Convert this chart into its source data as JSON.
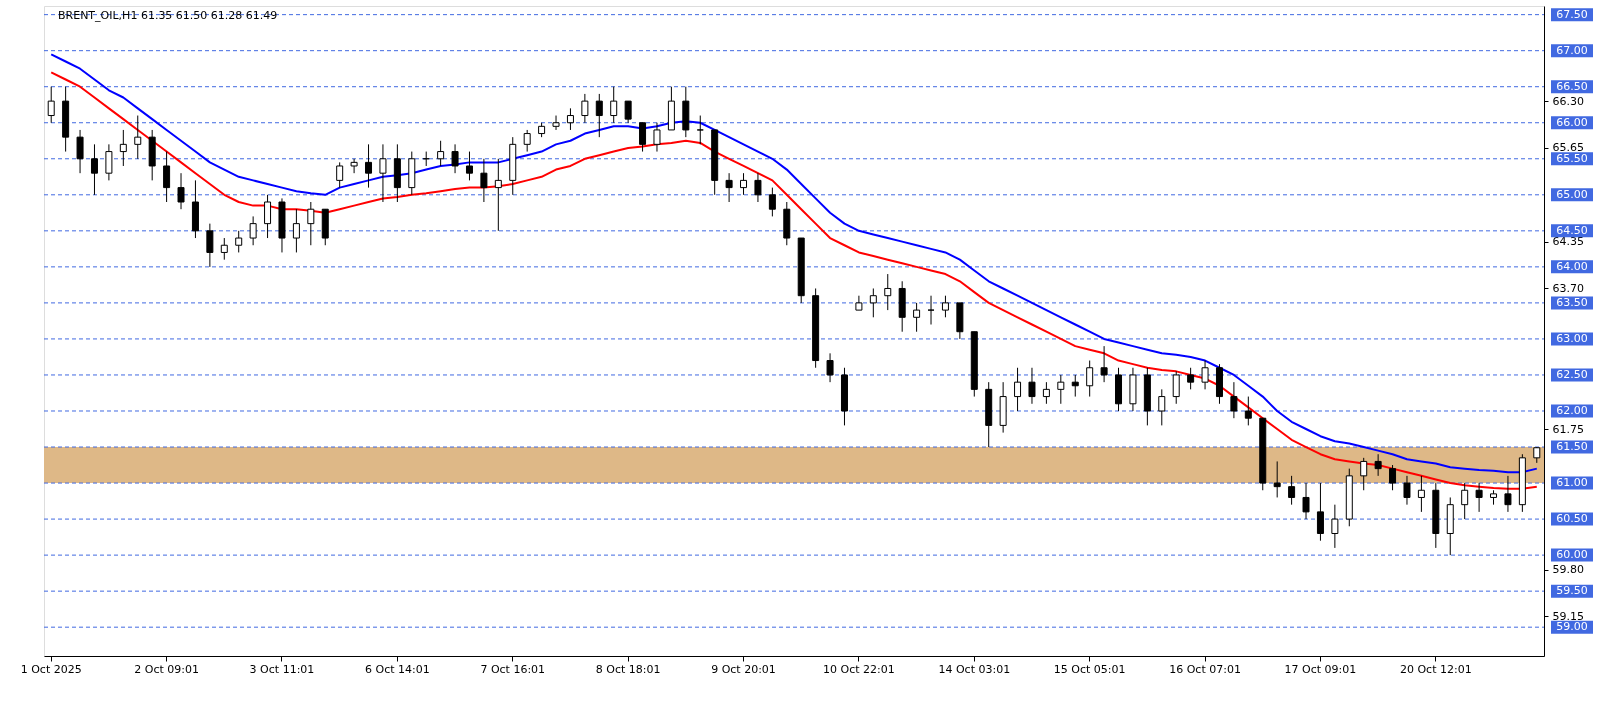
{
  "chart_data": {
    "type": "candlestick",
    "title": "BRENT_OIL,H1  61.35 61.50 61.28 61.49",
    "categories": [
      "1 Oct 2025",
      null,
      null,
      null,
      null,
      null,
      null,
      null,
      "2 Oct 09:01",
      null,
      null,
      null,
      null,
      null,
      null,
      null,
      "3 Oct 11:01",
      null,
      null,
      null,
      null,
      null,
      null,
      null,
      "6 Oct 14:01",
      null,
      null,
      null,
      null,
      null,
      null,
      null,
      "7 Oct 16:01",
      null,
      null,
      null,
      null,
      null,
      null,
      null,
      "8 Oct 18:01",
      null,
      null,
      null,
      null,
      null,
      null,
      null,
      "9 Oct 20:01",
      null,
      null,
      null,
      null,
      null,
      null,
      null,
      "10 Oct 22:01",
      null,
      null,
      null,
      null,
      null,
      null,
      null,
      "14 Oct 03:01",
      null,
      null,
      null,
      null,
      null,
      null,
      null,
      "15 Oct 05:01",
      null,
      null,
      null,
      null,
      null,
      null,
      null,
      "16 Oct 07:01",
      null,
      null,
      null,
      null,
      null,
      null,
      null,
      "17 Oct 09:01",
      null,
      null,
      null,
      null,
      null,
      null,
      null,
      "20 Oct 12:01",
      null,
      null,
      null,
      null,
      null,
      null,
      null
    ],
    "ohlc": [
      [
        66.1,
        66.5,
        66.0,
        66.3
      ],
      [
        66.3,
        66.5,
        65.6,
        65.8
      ],
      [
        65.8,
        65.9,
        65.3,
        65.5
      ],
      [
        65.5,
        65.7,
        65.0,
        65.3
      ],
      [
        65.3,
        65.7,
        65.2,
        65.6
      ],
      [
        65.6,
        65.9,
        65.4,
        65.7
      ],
      [
        65.7,
        66.1,
        65.5,
        65.8
      ],
      [
        65.8,
        65.9,
        65.2,
        65.4
      ],
      [
        65.4,
        65.6,
        64.9,
        65.1
      ],
      [
        65.1,
        65.3,
        64.8,
        64.9
      ],
      [
        64.9,
        65.2,
        64.4,
        64.5
      ],
      [
        64.5,
        64.6,
        64.0,
        64.2
      ],
      [
        64.2,
        64.4,
        64.1,
        64.3
      ],
      [
        64.3,
        64.5,
        64.2,
        64.4
      ],
      [
        64.4,
        64.7,
        64.3,
        64.6
      ],
      [
        64.6,
        65.0,
        64.4,
        64.9
      ],
      [
        64.9,
        64.95,
        64.2,
        64.4
      ],
      [
        64.4,
        64.8,
        64.2,
        64.6
      ],
      [
        64.6,
        64.9,
        64.3,
        64.8
      ],
      [
        64.8,
        64.8,
        64.3,
        64.4
      ],
      [
        65.2,
        65.45,
        65.1,
        65.4
      ],
      [
        65.4,
        65.5,
        65.3,
        65.45
      ],
      [
        65.45,
        65.7,
        65.1,
        65.3
      ],
      [
        65.3,
        65.7,
        64.9,
        65.5
      ],
      [
        65.5,
        65.7,
        64.9,
        65.1
      ],
      [
        65.1,
        65.6,
        65.0,
        65.5
      ],
      [
        65.5,
        65.6,
        65.4,
        65.5
      ],
      [
        65.5,
        65.75,
        65.4,
        65.6
      ],
      [
        65.6,
        65.7,
        65.3,
        65.4
      ],
      [
        65.4,
        65.6,
        65.2,
        65.3
      ],
      [
        65.3,
        65.5,
        64.9,
        65.1
      ],
      [
        65.1,
        65.5,
        64.5,
        65.2
      ],
      [
        65.2,
        65.8,
        65.0,
        65.7
      ],
      [
        65.7,
        65.9,
        65.6,
        65.85
      ],
      [
        65.85,
        66.0,
        65.8,
        65.95
      ],
      [
        65.95,
        66.1,
        65.9,
        66.0
      ],
      [
        66.0,
        66.2,
        65.9,
        66.1
      ],
      [
        66.1,
        66.4,
        66.0,
        66.3
      ],
      [
        66.3,
        66.4,
        65.8,
        66.1
      ],
      [
        66.1,
        66.5,
        66.0,
        66.3
      ],
      [
        66.3,
        66.3,
        66.0,
        66.05
      ],
      [
        66.0,
        66.0,
        65.6,
        65.7
      ],
      [
        65.7,
        66.0,
        65.6,
        65.9
      ],
      [
        65.9,
        66.5,
        65.9,
        66.3
      ],
      [
        66.3,
        66.5,
        65.8,
        65.9
      ],
      [
        65.9,
        66.1,
        65.7,
        65.9
      ],
      [
        65.9,
        65.9,
        65.0,
        65.2
      ],
      [
        65.2,
        65.3,
        64.9,
        65.1
      ],
      [
        65.1,
        65.3,
        65.0,
        65.2
      ],
      [
        65.2,
        65.3,
        64.9,
        65.0
      ],
      [
        65.0,
        65.1,
        64.7,
        64.8
      ],
      [
        64.8,
        64.9,
        64.3,
        64.4
      ],
      [
        64.4,
        64.4,
        63.5,
        63.6
      ],
      [
        63.6,
        63.7,
        62.6,
        62.7
      ],
      [
        62.7,
        62.8,
        62.4,
        62.5
      ],
      [
        62.5,
        62.6,
        61.8,
        62.0
      ],
      [
        63.4,
        63.6,
        63.4,
        63.5
      ],
      [
        63.5,
        63.7,
        63.3,
        63.6
      ],
      [
        63.6,
        63.9,
        63.4,
        63.7
      ],
      [
        63.7,
        63.8,
        63.1,
        63.3
      ],
      [
        63.3,
        63.5,
        63.1,
        63.4
      ],
      [
        63.4,
        63.6,
        63.2,
        63.4
      ],
      [
        63.4,
        63.6,
        63.3,
        63.5
      ],
      [
        63.5,
        63.5,
        63.0,
        63.1
      ],
      [
        63.1,
        63.1,
        62.2,
        62.3
      ],
      [
        62.3,
        62.4,
        61.5,
        61.8
      ],
      [
        61.8,
        62.4,
        61.7,
        62.2
      ],
      [
        62.2,
        62.6,
        62.0,
        62.4
      ],
      [
        62.4,
        62.6,
        62.1,
        62.2
      ],
      [
        62.2,
        62.4,
        62.1,
        62.3
      ],
      [
        62.3,
        62.5,
        62.1,
        62.4
      ],
      [
        62.4,
        62.5,
        62.2,
        62.35
      ],
      [
        62.35,
        62.7,
        62.2,
        62.6
      ],
      [
        62.6,
        62.9,
        62.4,
        62.5
      ],
      [
        62.5,
        62.6,
        62.0,
        62.1
      ],
      [
        62.1,
        62.6,
        62.0,
        62.5
      ],
      [
        62.5,
        62.6,
        61.8,
        62.0
      ],
      [
        62.0,
        62.3,
        61.8,
        62.2
      ],
      [
        62.2,
        62.55,
        62.1,
        62.5
      ],
      [
        62.5,
        62.6,
        62.3,
        62.4
      ],
      [
        62.4,
        62.7,
        62.3,
        62.6
      ],
      [
        62.6,
        62.65,
        62.1,
        62.2
      ],
      [
        62.2,
        62.4,
        61.9,
        62.0
      ],
      [
        62.0,
        62.2,
        61.8,
        61.9
      ],
      [
        61.9,
        61.9,
        60.9,
        61.0
      ],
      [
        61.0,
        61.3,
        60.8,
        60.95
      ],
      [
        60.95,
        61.1,
        60.7,
        60.8
      ],
      [
        60.8,
        61.0,
        60.5,
        60.6
      ],
      [
        60.6,
        61.0,
        60.2,
        60.3
      ],
      [
        60.3,
        60.7,
        60.1,
        60.5
      ],
      [
        60.5,
        61.2,
        60.4,
        61.1
      ],
      [
        61.1,
        61.35,
        60.9,
        61.3
      ],
      [
        61.3,
        61.4,
        61.1,
        61.2
      ],
      [
        61.2,
        61.25,
        60.9,
        61.0
      ],
      [
        61.0,
        61.1,
        60.7,
        60.8
      ],
      [
        60.8,
        61.1,
        60.6,
        60.9
      ],
      [
        60.9,
        61.0,
        60.1,
        60.3
      ],
      [
        60.3,
        60.8,
        60.0,
        60.7
      ],
      [
        60.7,
        61.0,
        60.5,
        60.9
      ],
      [
        60.9,
        61.0,
        60.6,
        60.8
      ],
      [
        60.8,
        60.9,
        60.7,
        60.85
      ],
      [
        60.85,
        61.1,
        60.6,
        60.7
      ],
      [
        60.7,
        61.4,
        60.6,
        61.35
      ],
      [
        61.35,
        61.5,
        61.28,
        61.49
      ]
    ],
    "series": [
      {
        "type": "line",
        "color": "#0000ff",
        "values": [
          66.95,
          66.85,
          66.75,
          66.6,
          66.45,
          66.35,
          66.2,
          66.05,
          65.9,
          65.75,
          65.6,
          65.45,
          65.35,
          65.25,
          65.2,
          65.15,
          65.1,
          65.05,
          65.02,
          65.0,
          65.1,
          65.15,
          65.2,
          65.25,
          65.27,
          65.3,
          65.35,
          65.4,
          65.42,
          65.45,
          65.45,
          65.45,
          65.5,
          65.55,
          65.6,
          65.7,
          65.75,
          65.85,
          65.9,
          65.95,
          65.95,
          65.92,
          65.95,
          66.0,
          66.02,
          66.0,
          65.9,
          65.8,
          65.7,
          65.6,
          65.5,
          65.35,
          65.15,
          64.95,
          64.75,
          64.6,
          64.5,
          64.45,
          64.4,
          64.35,
          64.3,
          64.25,
          64.2,
          64.1,
          63.95,
          63.8,
          63.7,
          63.6,
          63.5,
          63.4,
          63.3,
          63.2,
          63.1,
          63.0,
          62.95,
          62.9,
          62.85,
          62.8,
          62.78,
          62.75,
          62.7,
          62.6,
          62.5,
          62.35,
          62.2,
          62.0,
          61.85,
          61.75,
          61.65,
          61.58,
          61.55,
          61.5,
          61.45,
          61.4,
          61.33,
          61.3,
          61.27,
          61.22,
          61.2,
          61.18,
          61.17,
          61.15,
          61.15,
          61.2
        ]
      },
      {
        "type": "line",
        "color": "#ff0000",
        "values": [
          66.7,
          66.6,
          66.5,
          66.35,
          66.2,
          66.05,
          65.9,
          65.75,
          65.6,
          65.45,
          65.3,
          65.15,
          65.0,
          64.9,
          64.85,
          64.85,
          64.8,
          64.8,
          64.78,
          64.75,
          64.8,
          64.85,
          64.9,
          64.95,
          64.97,
          65.0,
          65.02,
          65.05,
          65.08,
          65.1,
          65.1,
          65.12,
          65.15,
          65.2,
          65.25,
          65.35,
          65.4,
          65.5,
          65.55,
          65.6,
          65.65,
          65.67,
          65.7,
          65.72,
          65.75,
          65.72,
          65.6,
          65.5,
          65.4,
          65.3,
          65.2,
          65.0,
          64.8,
          64.6,
          64.4,
          64.3,
          64.2,
          64.15,
          64.1,
          64.05,
          64.0,
          63.95,
          63.9,
          63.8,
          63.65,
          63.5,
          63.4,
          63.3,
          63.2,
          63.1,
          63.0,
          62.9,
          62.85,
          62.8,
          62.7,
          62.65,
          62.6,
          62.57,
          62.55,
          62.5,
          62.45,
          62.35,
          62.2,
          62.05,
          61.9,
          61.75,
          61.6,
          61.5,
          61.4,
          61.33,
          61.3,
          61.27,
          61.25,
          61.2,
          61.15,
          61.1,
          61.05,
          61.0,
          60.97,
          60.95,
          60.93,
          60.92,
          60.92,
          60.95
        ]
      }
    ],
    "ylim": [
      58.6,
      67.62
    ],
    "yticks": [
      {
        "value": 59.15,
        "label": "59.15"
      },
      {
        "value": 59.8,
        "label": "59.80"
      },
      {
        "value": 61.75,
        "label": "61.75"
      },
      {
        "value": 63.7,
        "label": "63.70"
      },
      {
        "value": 64.35,
        "label": "64.35"
      },
      {
        "value": 65.65,
        "label": "65.65"
      },
      {
        "value": 66.3,
        "label": "66.30"
      }
    ],
    "ref_lines": [
      {
        "axis": "y",
        "value": 59.0,
        "label": "59.00",
        "color": "#4169e1",
        "line_style": "dashed"
      },
      {
        "axis": "y",
        "value": 59.5,
        "label": "59.50",
        "color": "#4169e1",
        "line_style": "dashed"
      },
      {
        "axis": "y",
        "value": 60.0,
        "label": "60.00",
        "color": "#4169e1",
        "line_style": "dashed"
      },
      {
        "axis": "y",
        "value": 60.5,
        "label": "60.50",
        "color": "#4169e1",
        "line_style": "dashed"
      },
      {
        "axis": "y",
        "value": 61.0,
        "label": "61.00",
        "color": "#4169e1",
        "line_style": "dashed"
      },
      {
        "axis": "y",
        "value": 61.5,
        "label": "61.50",
        "color": "#4169e1",
        "line_style": "dashed"
      },
      {
        "axis": "y",
        "value": 62.0,
        "label": "62.00",
        "color": "#4169e1",
        "line_style": "dashed"
      },
      {
        "axis": "y",
        "value": 62.5,
        "label": "62.50",
        "color": "#4169e1",
        "line_style": "dashed"
      },
      {
        "axis": "y",
        "value": 63.0,
        "label": "63.00",
        "color": "#4169e1",
        "line_style": "dashed"
      },
      {
        "axis": "y",
        "value": 63.5,
        "label": "63.50",
        "color": "#4169e1",
        "line_style": "dashed"
      },
      {
        "axis": "y",
        "value": 64.0,
        "label": "64.00",
        "color": "#4169e1",
        "line_style": "dashed"
      },
      {
        "axis": "y",
        "value": 64.5,
        "label": "64.50",
        "color": "#4169e1",
        "line_style": "dashed"
      },
      {
        "axis": "y",
        "value": 65.0,
        "label": "65.00",
        "color": "#4169e1",
        "line_style": "dashed"
      },
      {
        "axis": "y",
        "value": 65.5,
        "label": "65.50",
        "color": "#4169e1",
        "line_style": "dashed"
      },
      {
        "axis": "y",
        "value": 66.0,
        "label": "66.00",
        "color": "#4169e1",
        "line_style": "dashed"
      },
      {
        "axis": "y",
        "value": 66.5,
        "label": "66.50",
        "color": "#4169e1",
        "line_style": "dashed"
      },
      {
        "axis": "y",
        "value": 67.0,
        "label": "67.00",
        "color": "#4169e1",
        "line_style": "dashed"
      },
      {
        "axis": "y",
        "value": 67.5,
        "label": "67.50",
        "color": "#4169e1",
        "line_style": "dashed"
      }
    ],
    "bands": [
      {
        "axis": "y",
        "from": 61.0,
        "to": 61.5,
        "color": "#deb887"
      }
    ]
  }
}
